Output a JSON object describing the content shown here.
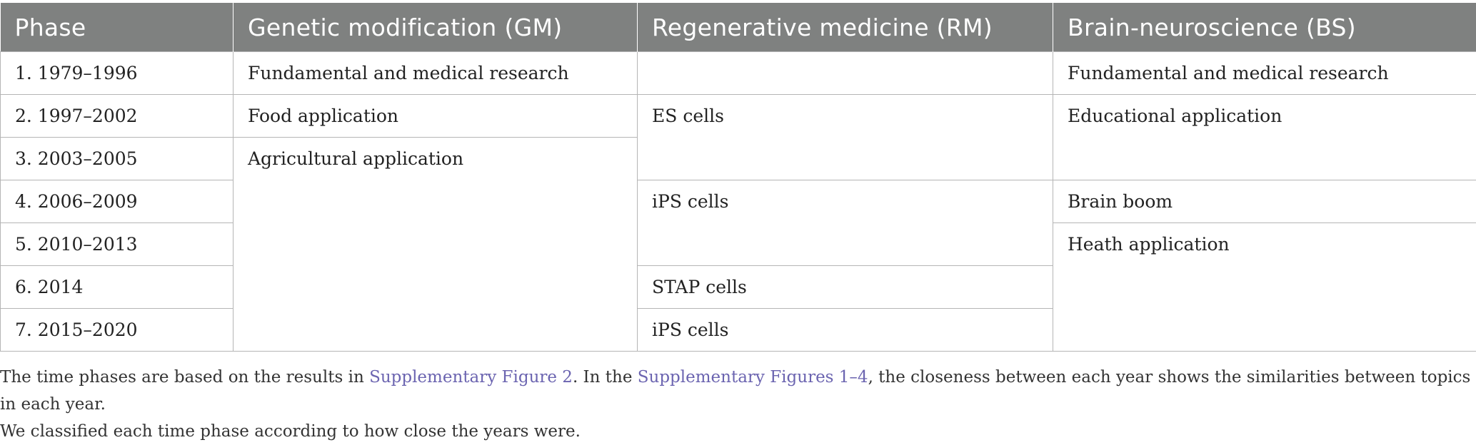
{
  "table": {
    "headers": [
      "Phase",
      "Genetic modification (GM)",
      "Regenerative medicine (RM)",
      "Brain-neuroscience (BS)"
    ],
    "phases": [
      "1. 1979–1996",
      "2. 1997–2002",
      "3. 2003–2005",
      "4. 2006–2009",
      "5. 2010–2013",
      "6. 2014",
      "7. 2015–2020"
    ],
    "gm": {
      "p1": "Fundamental and medical research",
      "p2": "Food application",
      "p3_7": "Agricultural application"
    },
    "rm": {
      "p1": "",
      "p2_3": "ES cells",
      "p4_5": "iPS cells",
      "p6": "STAP cells",
      "p7": "iPS cells"
    },
    "bs": {
      "p1": "Fundamental and medical research",
      "p2_3": "Educational application",
      "p4": "Brain boom",
      "p5_7": "Heath application"
    }
  },
  "caption": {
    "part1": "The time phases are based on the results in ",
    "link1": "Supplementary Figure 2",
    "part2": ". In the ",
    "link2": "Supplementary Figures 1–4",
    "part3": ", the closeness between each year shows the similarities between topics in each year.",
    "line2": "We classified each time phase according to how close the years were."
  }
}
